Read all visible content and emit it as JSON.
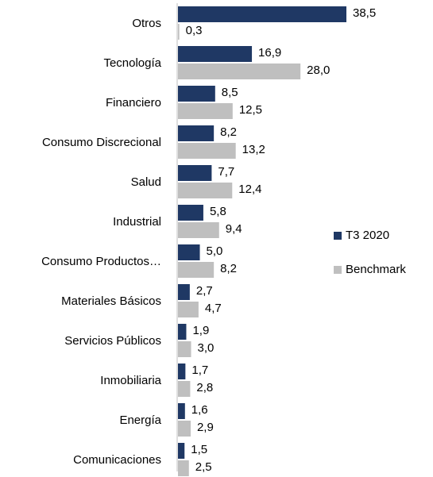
{
  "chart_data": {
    "type": "bar",
    "orientation": "horizontal",
    "categories": [
      "Otros",
      "Tecnología",
      "Financiero",
      "Consumo Discrecional",
      "Salud",
      "Industrial",
      "Consumo Productos…",
      "Materiales Básicos",
      "Servicios Públicos",
      "Inmobiliaria",
      "Energía",
      "Comunicaciones"
    ],
    "series": [
      {
        "name": "T3 2020",
        "color": "#1f3864",
        "values": [
          38.5,
          16.9,
          8.5,
          8.2,
          7.7,
          5.8,
          5.0,
          2.7,
          1.9,
          1.7,
          1.6,
          1.5
        ],
        "value_labels": [
          "38,5",
          "16,9",
          "8,5",
          "8,2",
          "7,7",
          "5,8",
          "5,0",
          "2,7",
          "1,9",
          "1,7",
          "1,6",
          "1,5"
        ]
      },
      {
        "name": "Benchmark",
        "color": "#bfbfbf",
        "values": [
          0.3,
          28.0,
          12.5,
          13.2,
          12.4,
          9.4,
          8.2,
          4.7,
          3.0,
          2.8,
          2.9,
          2.5
        ],
        "value_labels": [
          "0,3",
          "28,0",
          "12,5",
          "13,2",
          "12,4",
          "9,4",
          "8,2",
          "4,7",
          "3,0",
          "2,8",
          "2,9",
          "2,5"
        ]
      }
    ],
    "legend": "right"
  }
}
